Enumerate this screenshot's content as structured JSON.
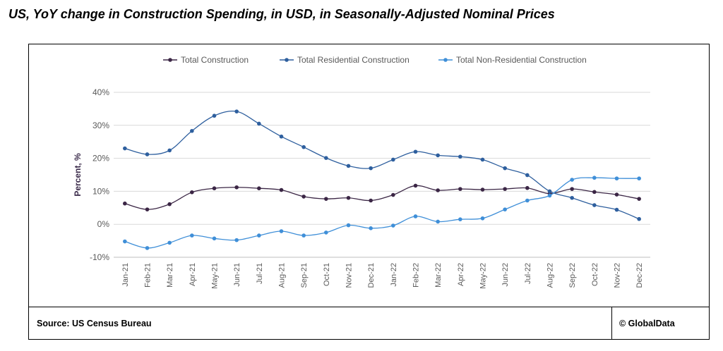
{
  "title": "US, YoY change in Construction Spending, in USD, in Seasonally-Adjusted Nominal Prices",
  "footer": {
    "source": "Source:  US Census Bureau",
    "copyright": "© GlobalData"
  },
  "chart_data": {
    "type": "line",
    "ylabel": "Percent, %",
    "xlabel": "",
    "ylim": [
      -10,
      40
    ],
    "yticks": [
      "-10%",
      "0%",
      "10%",
      "20%",
      "30%",
      "40%"
    ],
    "ytick_values": [
      -10,
      0,
      10,
      20,
      30,
      40
    ],
    "grid": true,
    "legend_position": "top",
    "categories": [
      "Jan-21",
      "Feb-21",
      "Mar-21",
      "Apr-21",
      "May-21",
      "Jun-21",
      "Jul-21",
      "Aug-21",
      "Sep-21",
      "Oct-21",
      "Nov-21",
      "Dec-21",
      "Jan-22",
      "Feb-22",
      "Mar-22",
      "Apr-22",
      "May-22",
      "Jun-22",
      "Jul-22",
      "Aug-22",
      "Sep-22",
      "Oct-22",
      "Nov-22",
      "Dec-22"
    ],
    "series": [
      {
        "name": "Total Construction",
        "color": "#3b2645",
        "values": [
          6.3,
          4.5,
          6.1,
          9.7,
          10.9,
          11.2,
          10.9,
          10.4,
          8.4,
          7.7,
          8.0,
          7.2,
          8.9,
          11.7,
          10.3,
          10.7,
          10.5,
          10.7,
          11.0,
          9.3,
          10.7,
          9.8,
          9.0,
          7.7
        ]
      },
      {
        "name": "Total Residential Construction",
        "color": "#2e5f9e",
        "values": [
          23.0,
          21.2,
          22.4,
          28.3,
          32.9,
          34.2,
          30.5,
          26.6,
          23.4,
          20.1,
          17.7,
          17.0,
          19.6,
          22.0,
          20.9,
          20.5,
          19.6,
          17.0,
          14.9,
          10.0,
          8.0,
          5.8,
          4.4,
          1.6
        ]
      },
      {
        "name": "Total Non-Residential Construction",
        "color": "#3f8fd8",
        "values": [
          -5.2,
          -7.2,
          -5.6,
          -3.4,
          -4.3,
          -4.8,
          -3.4,
          -2.1,
          -3.4,
          -2.5,
          -0.3,
          -1.2,
          -0.4,
          2.4,
          0.8,
          1.5,
          1.8,
          4.5,
          7.2,
          8.7,
          13.5,
          14.1,
          13.9,
          13.9
        ]
      }
    ]
  }
}
